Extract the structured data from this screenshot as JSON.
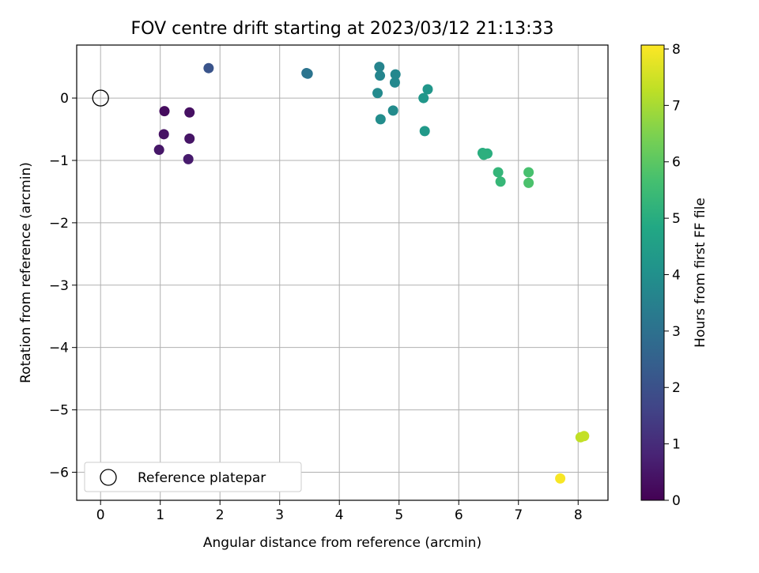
{
  "chart_data": {
    "type": "scatter",
    "title": "FOV centre drift starting at 2023/03/12 21:13:33",
    "xlabel": "Angular distance from reference (arcmin)",
    "ylabel": "Rotation from reference (arcmin)",
    "xlim": [
      -0.4,
      8.5
    ],
    "ylim": [
      -6.45,
      0.85
    ],
    "xticks": [
      0,
      1,
      2,
      3,
      4,
      5,
      6,
      7,
      8
    ],
    "yticks": [
      0,
      -1,
      -2,
      -3,
      -4,
      -5,
      -6
    ],
    "grid": true,
    "legend": {
      "position": "bottom-left",
      "label": "Reference platepar"
    },
    "reference_point": {
      "x": 0,
      "y": 0
    },
    "colorbar": {
      "label": "Hours from first FF file",
      "min": 0,
      "max": 8.07,
      "ticks": [
        0,
        1,
        2,
        3,
        4,
        5,
        6,
        7,
        8
      ],
      "colormap": "viridis"
    },
    "points": [
      {
        "x": 1.07,
        "y": -0.21,
        "h": 0.25
      },
      {
        "x": 1.49,
        "y": -0.23,
        "h": 0.35
      },
      {
        "x": 1.06,
        "y": -0.58,
        "h": 0.4
      },
      {
        "x": 1.49,
        "y": -0.65,
        "h": 0.45
      },
      {
        "x": 0.98,
        "y": -0.83,
        "h": 0.5
      },
      {
        "x": 1.47,
        "y": -0.98,
        "h": 0.6
      },
      {
        "x": 1.81,
        "y": 0.48,
        "h": 2.1
      },
      {
        "x": 3.45,
        "y": 0.4,
        "h": 3.05
      },
      {
        "x": 3.47,
        "y": 0.39,
        "h": 3.1
      },
      {
        "x": 4.67,
        "y": 0.5,
        "h": 3.6
      },
      {
        "x": 4.68,
        "y": 0.36,
        "h": 3.65
      },
      {
        "x": 4.94,
        "y": 0.38,
        "h": 3.7
      },
      {
        "x": 4.93,
        "y": 0.25,
        "h": 3.75
      },
      {
        "x": 4.64,
        "y": 0.08,
        "h": 3.8
      },
      {
        "x": 4.9,
        "y": -0.2,
        "h": 3.85
      },
      {
        "x": 4.69,
        "y": -0.34,
        "h": 3.9
      },
      {
        "x": 5.48,
        "y": 0.14,
        "h": 4.2
      },
      {
        "x": 5.41,
        "y": 0.0,
        "h": 4.25
      },
      {
        "x": 5.43,
        "y": -0.53,
        "h": 4.3
      },
      {
        "x": 6.4,
        "y": -0.88,
        "h": 5.0
      },
      {
        "x": 6.48,
        "y": -0.89,
        "h": 5.05
      },
      {
        "x": 6.42,
        "y": -0.91,
        "h": 5.1
      },
      {
        "x": 6.66,
        "y": -1.19,
        "h": 5.3
      },
      {
        "x": 6.7,
        "y": -1.34,
        "h": 5.35
      },
      {
        "x": 7.17,
        "y": -1.19,
        "h": 5.7
      },
      {
        "x": 7.17,
        "y": -1.36,
        "h": 5.75
      },
      {
        "x": 8.04,
        "y": -5.44,
        "h": 7.3
      },
      {
        "x": 8.1,
        "y": -5.42,
        "h": 7.35
      },
      {
        "x": 7.7,
        "y": -6.1,
        "h": 8.0
      }
    ]
  }
}
